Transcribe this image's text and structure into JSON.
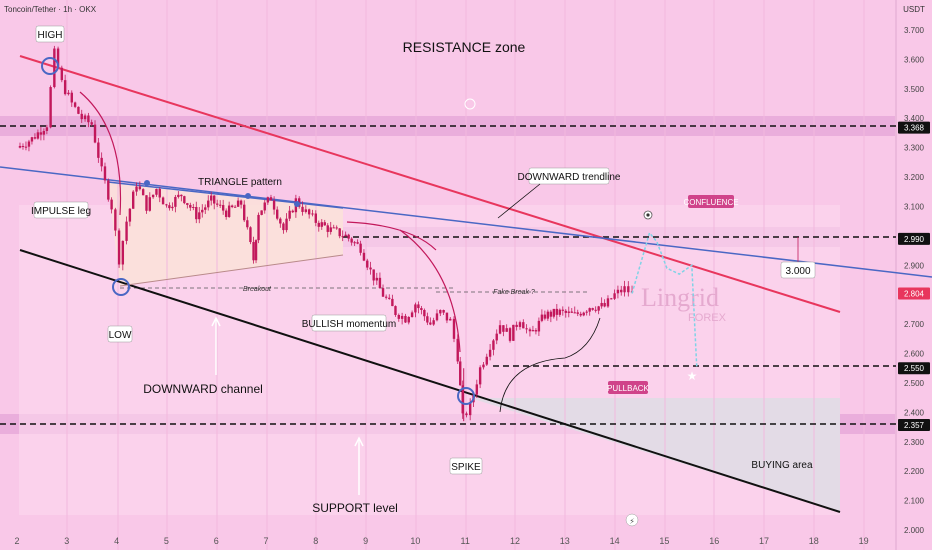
{
  "header": {
    "symbol": "Toncoin/Tether · 1h · OKX",
    "currency": "USDT"
  },
  "watermark": {
    "brand": "Lingrid",
    "sub": "FOREX"
  },
  "colors": {
    "background": "#f9c8e8",
    "band": "#e6a8d8",
    "candle": "#c2185b",
    "downtrend": "#e8365d",
    "trendline_blue": "#4a67c4",
    "channel": "#111111",
    "projection": "#7fd3e6"
  },
  "annotations": {
    "high": "HIGH",
    "low": "LOW",
    "spike": "SPIKE",
    "resistance_zone": "RESISTANCE zone",
    "triangle": "TRIANGLE pattern",
    "impulse": "IMPULSE leg",
    "breakout": "Breakout",
    "bullish": "BULLISH momentum",
    "fake_break": "Fake Break ?",
    "downward_trendline": "DOWNWARD trendline",
    "confluence": "CONFLUENCE",
    "pullback": "PULLBACK",
    "downward_channel": "DOWNWARD channel",
    "support_level": "SUPPORT level",
    "buying_area": "BUYING area",
    "level_3000": "3.000"
  },
  "chart_data": {
    "type": "candlestick",
    "title": "Toncoin/Tether · 1h · OKX",
    "ylabel": "USDT",
    "x_ticks": [
      "2",
      "3",
      "4",
      "5",
      "6",
      "7",
      "8",
      "9",
      "10",
      "11",
      "12",
      "13",
      "14",
      "15",
      "16",
      "17",
      "18",
      "19"
    ],
    "y_ticks": [
      "3.700",
      "3.600",
      "3.500",
      "3.400",
      "3.368",
      "3.300",
      "3.200",
      "3.100",
      "2.990",
      "2.900",
      "2.804",
      "2.700",
      "2.600",
      "2.550",
      "2.500",
      "2.400",
      "2.357",
      "2.300",
      "2.200",
      "2.100",
      "2.000"
    ],
    "ylim": [
      2.0,
      3.75
    ],
    "key_levels": [
      {
        "label": "3.368",
        "value": 3.368,
        "style": "dashed"
      },
      {
        "label": "2.990",
        "value": 2.99,
        "style": "dashed"
      },
      {
        "label": "2.550",
        "value": 2.55,
        "style": "dashed"
      },
      {
        "label": "2.357",
        "value": 2.357,
        "style": "dashed"
      }
    ],
    "last_price": {
      "label": "2.804",
      "value": 2.804
    },
    "price_path": [
      [
        2.0,
        3.3
      ],
      [
        2.3,
        3.33
      ],
      [
        2.6,
        3.38
      ],
      [
        2.75,
        3.62
      ],
      [
        2.9,
        3.52
      ],
      [
        3.1,
        3.45
      ],
      [
        3.3,
        3.4
      ],
      [
        3.5,
        3.38
      ],
      [
        3.7,
        3.22
      ],
      [
        3.9,
        3.1
      ],
      [
        4.05,
        2.92
      ],
      [
        4.2,
        3.05
      ],
      [
        4.4,
        3.18
      ],
      [
        4.6,
        3.1
      ],
      [
        4.8,
        3.16
      ],
      [
        5.0,
        3.1
      ],
      [
        5.3,
        3.14
      ],
      [
        5.6,
        3.07
      ],
      [
        5.9,
        3.12
      ],
      [
        6.2,
        3.08
      ],
      [
        6.5,
        3.11
      ],
      [
        6.75,
        2.92
      ],
      [
        6.85,
        3.08
      ],
      [
        7.1,
        3.13
      ],
      [
        7.35,
        3.02
      ],
      [
        7.6,
        3.12
      ],
      [
        7.8,
        3.08
      ],
      [
        8.0,
        3.05
      ],
      [
        8.3,
        3.02
      ],
      [
        8.6,
        3.0
      ],
      [
        8.9,
        2.96
      ],
      [
        9.1,
        2.88
      ],
      [
        9.35,
        2.8
      ],
      [
        9.6,
        2.74
      ],
      [
        9.8,
        2.72
      ],
      [
        10.0,
        2.77
      ],
      [
        10.3,
        2.7
      ],
      [
        10.5,
        2.74
      ],
      [
        10.7,
        2.71
      ],
      [
        10.85,
        2.59
      ],
      [
        10.95,
        2.38
      ],
      [
        11.1,
        2.42
      ],
      [
        11.3,
        2.55
      ],
      [
        11.5,
        2.63
      ],
      [
        11.7,
        2.7
      ],
      [
        11.9,
        2.66
      ],
      [
        12.1,
        2.72
      ],
      [
        12.3,
        2.66
      ],
      [
        12.6,
        2.73
      ],
      [
        12.9,
        2.74
      ],
      [
        13.2,
        2.73
      ],
      [
        13.5,
        2.76
      ],
      [
        13.8,
        2.76
      ],
      [
        14.0,
        2.8
      ],
      [
        14.2,
        2.82
      ],
      [
        14.35,
        2.804
      ]
    ],
    "spike_low": 2.37,
    "projection": [
      [
        14.35,
        2.804
      ],
      [
        14.7,
        3.01
      ],
      [
        14.85,
        2.98
      ],
      [
        15.05,
        2.89
      ],
      [
        15.3,
        2.87
      ],
      [
        15.55,
        2.9
      ],
      [
        15.65,
        2.55
      ]
    ]
  }
}
